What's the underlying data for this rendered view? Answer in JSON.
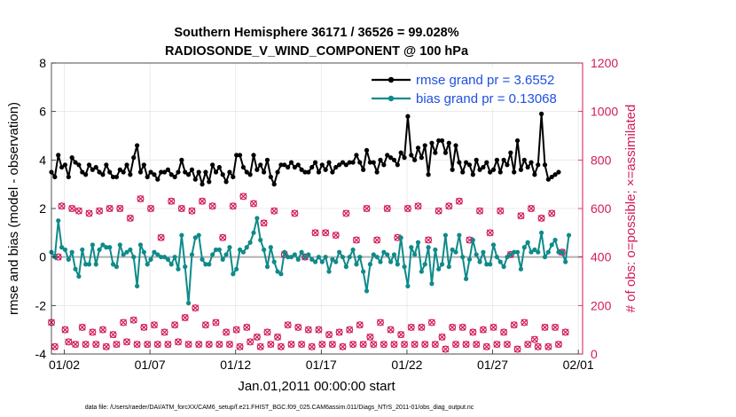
{
  "chart_data": {
    "type": "line",
    "title_line1": "Southern Hemisphere 36171 / 36526 = 99.028%",
    "title_line2": "RADIOSONDE_V_WIND_COMPONENT @ 100 hPa",
    "xlabel": "Jan.01,2011 00:00:00 start",
    "ylabel_left": "rmse and bias (model - observation)",
    "ylabel_right": "# of obs: o=possible; ×=assimilated",
    "footer": "data file: /Users/raeder/DAI/ATM_forcXX/CAM6_setup/f.e21.FHIST_BGC.f09_025.CAM6assim.011/Diags_NTrS_2011-01/obs_diag_output.nc",
    "x_tick_labels": [
      "01/02",
      "01/07",
      "01/12",
      "01/17",
      "01/22",
      "01/27",
      "02/01"
    ],
    "x_tick_days": [
      1,
      6,
      11,
      16,
      21,
      26,
      31
    ],
    "xlim_days": [
      0.25,
      31.25
    ],
    "ylim_left": [
      -4,
      8
    ],
    "yticks_left": [
      "-4",
      "-2",
      "0",
      "2",
      "4",
      "6",
      "8"
    ],
    "ylim_right": [
      0,
      1200
    ],
    "yticks_right": [
      "0",
      "200",
      "400",
      "600",
      "800",
      "1000",
      "1200"
    ],
    "colors": {
      "rmse": "#000000",
      "bias": "#0f8a8a",
      "obs": "#d11a5a",
      "zero_line": "#b0b0b0",
      "grid": "#e6e6e6",
      "legend_text": "#1f4fe0"
    },
    "series": [
      {
        "name": "rmse grand pr = 3.6552",
        "axis": "left",
        "values": [
          3.5,
          3.3,
          4.2,
          3.7,
          3.8,
          3.3,
          4.1,
          3.9,
          3.8,
          3.5,
          3.4,
          3.8,
          3.6,
          3.7,
          3.5,
          3.4,
          3.8,
          3.5,
          3.3,
          3.3,
          3.6,
          3.5,
          3.8,
          3.4,
          4.1,
          4.6,
          3.5,
          3.8,
          3.3,
          3.5,
          3.4,
          3.2,
          3.5,
          3.5,
          3.6,
          3.4,
          3.3,
          3.5,
          4.0,
          3.5,
          3.4,
          3.6,
          3.2,
          3.5,
          3.0,
          3.5,
          3.1,
          3.8,
          3.5,
          3.7,
          3.4,
          3.1,
          3.5,
          3.3,
          4.2,
          4.2,
          3.7,
          3.5,
          3.4,
          4.2,
          3.6,
          3.8,
          3.5,
          4.0,
          3.3,
          3.0,
          3.5,
          3.8,
          3.8,
          3.7,
          3.9,
          3.7,
          3.8,
          3.6,
          3.5,
          3.5,
          3.7,
          3.9,
          3.5,
          3.8,
          3.6,
          3.9,
          3.5,
          3.7,
          3.8,
          3.9,
          3.8,
          3.9,
          3.9,
          4.2,
          3.9,
          3.6,
          4.4,
          3.9,
          3.9,
          3.5,
          4.0,
          3.8,
          4.2,
          4.1,
          4.0,
          3.8,
          4.3,
          4.1,
          5.8,
          4.2,
          4.0,
          4.5,
          4.1,
          4.6,
          3.4,
          4.7,
          4.3,
          4.8,
          4.8,
          4.3,
          4.7,
          3.6,
          4.6,
          3.9,
          3.5,
          3.9,
          3.8,
          3.4,
          4.0,
          3.6,
          3.7,
          3.9,
          3.5,
          3.6,
          4.0,
          3.5,
          4.0,
          3.8,
          4.3,
          3.5,
          4.8,
          3.6,
          4.0,
          3.7,
          3.9,
          3.4,
          3.8,
          5.9,
          3.8,
          3.2,
          3.3,
          3.4,
          3.5
        ]
      },
      {
        "name": "bias grand pr = 0.13068",
        "axis": "left",
        "values": [
          0.2,
          0.0,
          1.5,
          0.4,
          0.3,
          -0.1,
          0.2,
          -0.5,
          -0.8,
          0.3,
          -0.3,
          -0.3,
          0.5,
          -0.3,
          0.3,
          0.5,
          0.4,
          0.4,
          -0.3,
          -0.4,
          0.5,
          0.1,
          0.2,
          0.3,
          0.0,
          -1.2,
          0.5,
          0.2,
          -0.3,
          -0.1,
          0.2,
          0.1,
          0.0,
          0.0,
          -0.1,
          -0.3,
          0.0,
          -0.5,
          0.9,
          -0.4,
          -1.9,
          0.1,
          0.8,
          0.9,
          -0.1,
          -0.3,
          -0.3,
          0.1,
          0.3,
          0.3,
          -0.1,
          0.1,
          0.4,
          -0.7,
          -0.5,
          0.3,
          0.2,
          0.4,
          0.6,
          1.0,
          1.6,
          0.7,
          0.3,
          -0.4,
          0.4,
          -0.2,
          -0.6,
          -0.7,
          0.2,
          0.0,
          0.0,
          0.1,
          -0.1,
          0.2,
          0.0,
          0.1,
          -0.1,
          -0.2,
          0.0,
          -0.2,
          0.0,
          -0.6,
          -0.1,
          -0.2,
          0.2,
          0.0,
          -0.4,
          0.0,
          0.3,
          -0.3,
          0.0,
          -0.6,
          -1.4,
          -0.3,
          0.1,
          0.0,
          -0.2,
          0.2,
          0.1,
          -0.2,
          0.1,
          -0.3,
          0.8,
          -0.4,
          -1.2,
          0.4,
          0.1,
          0.6,
          -0.6,
          -0.3,
          0.4,
          -1.1,
          0.3,
          -0.5,
          -0.3,
          0.9,
          -0.4,
          0.3,
          0.2,
          0.9,
          0.0,
          -0.9,
          -0.1,
          0.7,
          0.1,
          -0.2,
          0.2,
          -0.3,
          -0.3,
          0.5,
          0.0,
          -0.2,
          -0.4,
          0.0,
          0.1,
          0.2,
          0.2,
          -0.5,
          0.4,
          0.6,
          0.2,
          0.3,
          0.2,
          1.0,
          0.0,
          0.2,
          0.5,
          0.7,
          0.2,
          0.2,
          -0.2,
          0.9
        ]
      },
      {
        "name": "obs count (possible / assimilated)",
        "axis": "right",
        "values": [
          130,
          30,
          400,
          610,
          100,
          50,
          600,
          40,
          590,
          110,
          40,
          580,
          90,
          40,
          590,
          100,
          30,
          600,
          80,
          40,
          600,
          130,
          50,
          560,
          140,
          40,
          640,
          110,
          40,
          600,
          120,
          40,
          480,
          90,
          40,
          630,
          120,
          50,
          600,
          150,
          40,
          590,
          190,
          40,
          630,
          120,
          40,
          610,
          130,
          40,
          480,
          90,
          40,
          610,
          100,
          30,
          650,
          110,
          50,
          620,
          70,
          30,
          540,
          90,
          40,
          590,
          70,
          30,
          410,
          120,
          40,
          580,
          110,
          40,
          400,
          100,
          30,
          500,
          100,
          40,
          500,
          80,
          40,
          490,
          90,
          30,
          580,
          100,
          40,
          470,
          120,
          40,
          600,
          70,
          40,
          470,
          130,
          40,
          600,
          100,
          40,
          480,
          80,
          40,
          600,
          110,
          40,
          610,
          110,
          40,
          470,
          130,
          40,
          590,
          70,
          20,
          610,
          110,
          40,
          630,
          110,
          40,
          470,
          90,
          40,
          590,
          100,
          30,
          500,
          110,
          40,
          590,
          90,
          40,
          410,
          120,
          20,
          570,
          130,
          40,
          600,
          60,
          30,
          560,
          110,
          30,
          580,
          110,
          40,
          420,
          90
        ]
      }
    ]
  },
  "legend": {
    "rmse_label": "rmse grand pr = 3.6552",
    "bias_label": "bias grand pr = 0.13068"
  }
}
